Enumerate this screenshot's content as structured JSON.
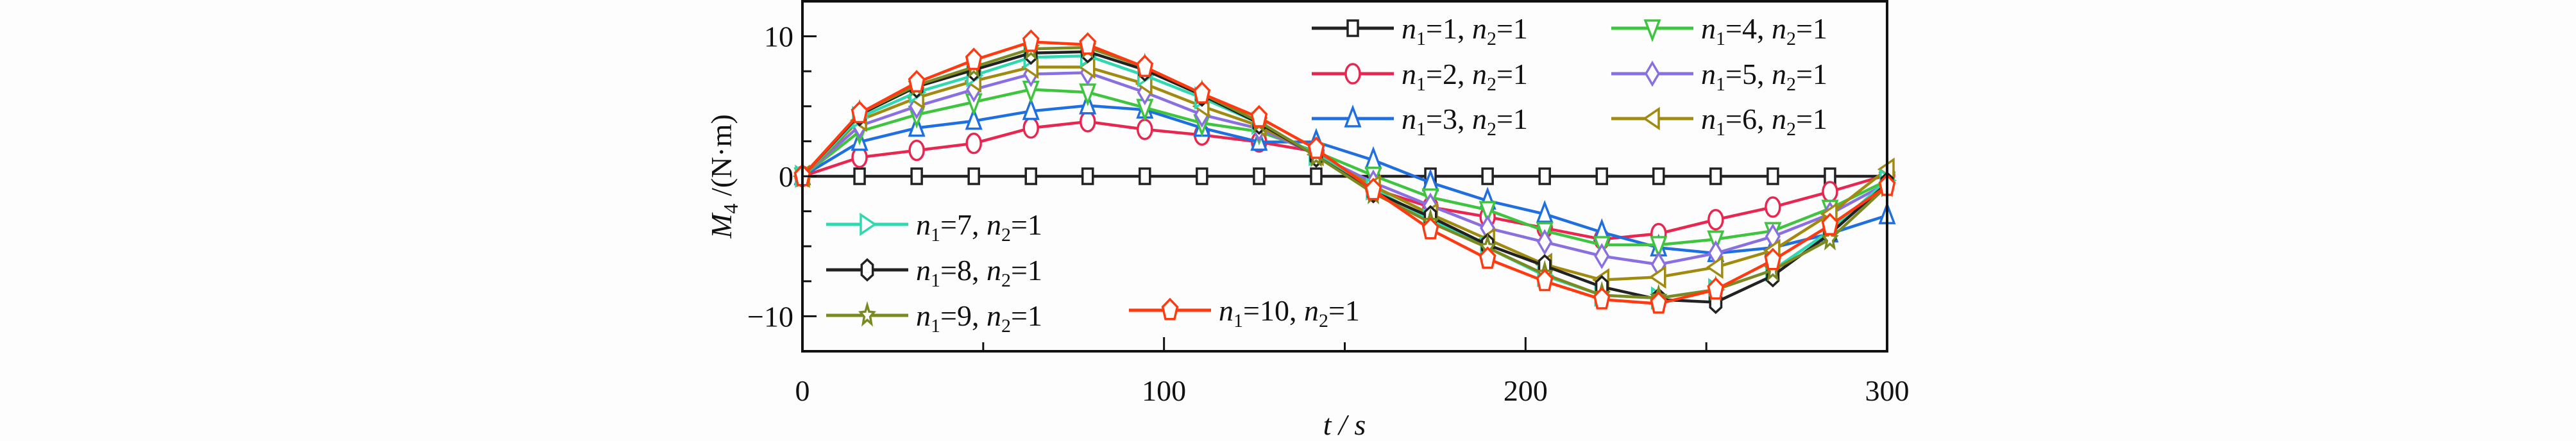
{
  "chart_data": {
    "type": "line",
    "title": "",
    "xlabel": "t / s",
    "ylabel": "M4 /(N·m)",
    "xlim": [
      0,
      300
    ],
    "ylim": [
      -12.5,
      12.5
    ],
    "xticks": [
      0,
      100,
      200,
      300
    ],
    "xtick_labels": [
      "0",
      "100",
      "200",
      "300"
    ],
    "xminor_step": 50,
    "yticks": [
      -10,
      0,
      10
    ],
    "ytick_labels": [
      "−10",
      "0",
      "10"
    ],
    "yminor_step": 2.5,
    "grid": false,
    "x": [
      0,
      15.8,
      31.6,
      47.4,
      63.2,
      78.9,
      94.7,
      110.5,
      126.3,
      142.1,
      157.9,
      173.7,
      189.5,
      205.3,
      221.1,
      236.8,
      252.6,
      268.4,
      284.2,
      300
    ],
    "series": [
      {
        "name": "n1=1, n2=1",
        "color": "#222222",
        "marker": "square",
        "values": [
          0,
          0,
          0,
          0,
          0,
          0,
          0,
          0,
          0,
          0,
          0,
          0,
          0,
          0,
          0,
          0,
          0,
          0,
          0,
          0
        ]
      },
      {
        "name": "n1=2, n2=1",
        "color": "#e8264f",
        "marker": "circle",
        "values": [
          0,
          1.35,
          1.85,
          2.35,
          3.45,
          3.9,
          3.35,
          2.95,
          2.45,
          1.75,
          -0.9,
          -2.2,
          -2.9,
          -3.7,
          -4.5,
          -4.1,
          -3.1,
          -2.2,
          -1.1,
          0.1
        ]
      },
      {
        "name": "n1=3, n2=1",
        "color": "#1f6fe0",
        "marker": "triangle-up",
        "values": [
          0,
          2.45,
          3.45,
          3.95,
          4.65,
          5.05,
          4.75,
          3.45,
          2.45,
          2.45,
          1.15,
          -0.45,
          -1.75,
          -2.7,
          -4.0,
          -5.1,
          -5.5,
          -5.1,
          -4.1,
          -2.8
        ]
      },
      {
        "name": "n1=4, n2=1",
        "color": "#3ec43e",
        "marker": "triangle-down",
        "values": [
          0,
          3.2,
          4.4,
          5.3,
          6.2,
          6.0,
          4.9,
          3.8,
          3.2,
          1.75,
          0.05,
          -1.5,
          -2.4,
          -3.9,
          -4.9,
          -4.9,
          -4.5,
          -3.9,
          -2.3,
          -0.3
        ]
      },
      {
        "name": "n1=5, n2=1",
        "color": "#8a6fe0",
        "marker": "diamond",
        "values": [
          0,
          3.6,
          5.0,
          6.2,
          7.3,
          7.4,
          6.0,
          4.4,
          3.4,
          1.55,
          -0.45,
          -2.1,
          -3.7,
          -4.7,
          -5.7,
          -6.3,
          -5.5,
          -4.3,
          -2.7,
          -0.5
        ]
      },
      {
        "name": "n1=6, n2=1",
        "color": "#a08a10",
        "marker": "triangle-left",
        "values": [
          0,
          4.0,
          5.6,
          6.8,
          7.8,
          7.8,
          6.6,
          5.0,
          3.6,
          1.55,
          -0.7,
          -2.7,
          -4.5,
          -6.3,
          -7.4,
          -7.2,
          -6.5,
          -5.3,
          -2.7,
          0.5
        ]
      },
      {
        "name": "n1=7, n2=1",
        "color": "#30d8b0",
        "marker": "triangle-right",
        "values": [
          0,
          4.2,
          6.0,
          7.2,
          8.5,
          8.6,
          7.2,
          5.6,
          3.8,
          1.55,
          -0.9,
          -3.1,
          -5.1,
          -7.1,
          -8.5,
          -8.7,
          -8.1,
          -6.7,
          -3.9,
          -0.3
        ]
      },
      {
        "name": "n1=8, n2=1",
        "color": "#222222",
        "marker": "hexagon",
        "values": [
          0,
          4.4,
          6.4,
          7.6,
          8.8,
          8.9,
          7.6,
          5.8,
          3.8,
          1.45,
          -1.1,
          -2.9,
          -4.9,
          -6.4,
          -7.9,
          -8.8,
          -9.0,
          -7.1,
          -4.1,
          -0.5
        ]
      },
      {
        "name": "n1=9, n2=1",
        "color": "#7a8a20",
        "marker": "star",
        "values": [
          0,
          4.5,
          6.5,
          7.8,
          9.1,
          9.2,
          7.8,
          5.9,
          3.9,
          1.45,
          -1.2,
          -3.3,
          -5.1,
          -7.0,
          -8.5,
          -8.7,
          -8.1,
          -6.7,
          -4.5,
          -0.7
        ]
      },
      {
        "name": "n1=10, n2=1",
        "color": "#ff3a10",
        "marker": "pentagon",
        "values": [
          0,
          4.5,
          6.7,
          8.3,
          9.6,
          9.4,
          7.8,
          5.9,
          4.2,
          1.95,
          -1.0,
          -3.8,
          -5.9,
          -7.5,
          -8.8,
          -9.1,
          -8.1,
          -6.0,
          -3.5,
          -0.7
        ]
      }
    ],
    "legend": {
      "placement": "top-right and bottom-left (inside plot)"
    }
  }
}
